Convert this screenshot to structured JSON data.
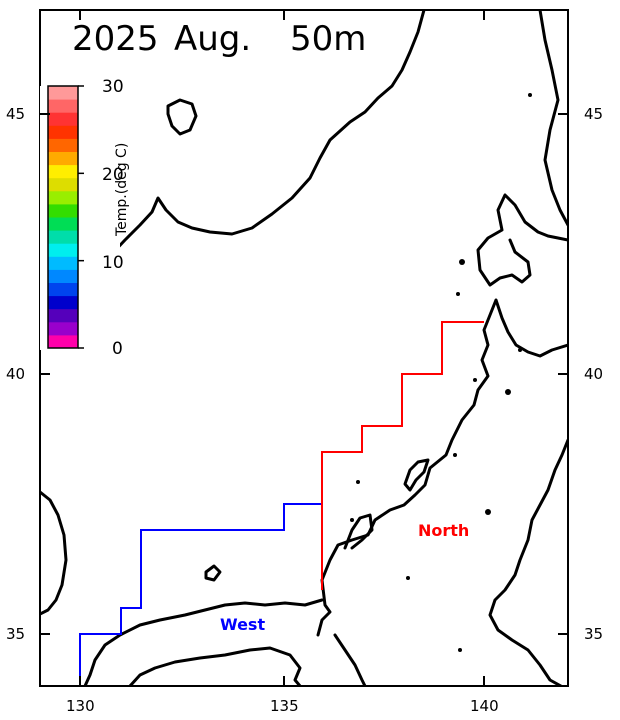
{
  "title": {
    "year": "2025",
    "month": "Aug.",
    "depth": "50m"
  },
  "colorbar": {
    "label": "Temp.(deg C)",
    "ticks": [
      "30",
      "20",
      "10",
      "0"
    ],
    "colors": [
      "#ff00aa",
      "#9900cc",
      "#5500bb",
      "#0000cc",
      "#0044ee",
      "#0088ff",
      "#00bbff",
      "#00eeee",
      "#00ddaa",
      "#00dd55",
      "#33dd00",
      "#99ee00",
      "#dddd00",
      "#ffee00",
      "#ffaa00",
      "#ff6600",
      "#ff3300",
      "#ff3333",
      "#ff6666",
      "#ff9999"
    ]
  },
  "axes": {
    "x_ticks": [
      "130",
      "135",
      "140"
    ],
    "y_ticks_left": [
      "45",
      "40",
      "35"
    ],
    "y_ticks_right": [
      "45",
      "40",
      "35"
    ]
  },
  "regions": {
    "west": {
      "label": "West",
      "color": "#0000ff"
    },
    "north": {
      "label": "North",
      "color": "#ff0000"
    }
  }
}
